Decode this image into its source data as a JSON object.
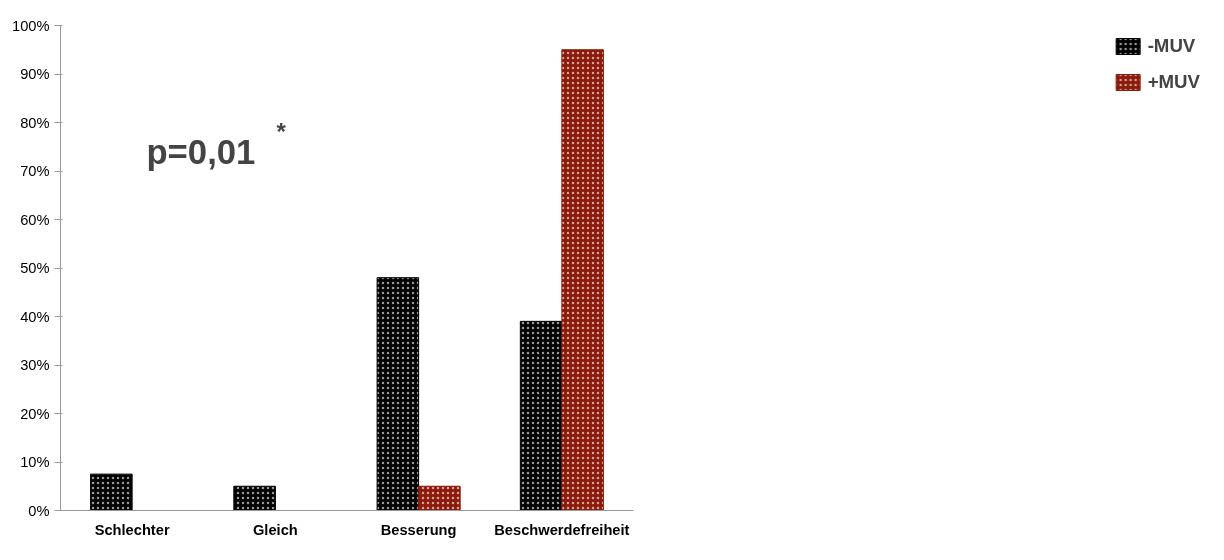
{
  "chart_data": {
    "type": "bar",
    "categories": [
      "Schlechter",
      "Gleich",
      "Besserung",
      "Beschwerdefreiheit"
    ],
    "series": [
      {
        "name": "-MUV",
        "color": "#000000",
        "values": [
          7.5,
          5,
          48,
          39
        ]
      },
      {
        "name": "+MUV",
        "color": "#8b1a0a",
        "values": [
          0,
          0,
          5,
          95
        ]
      }
    ],
    "ylim": [
      0,
      100
    ],
    "yticks": [
      {
        "value": 0,
        "label": "0%"
      },
      {
        "value": 10,
        "label": "10%"
      },
      {
        "value": 20,
        "label": "20%"
      },
      {
        "value": 30,
        "label": "30%"
      },
      {
        "value": 40,
        "label": "40%"
      },
      {
        "value": 50,
        "label": "50%"
      },
      {
        "value": 60,
        "label": "60%"
      },
      {
        "value": 70,
        "label": "70%"
      },
      {
        "value": 80,
        "label": "80%"
      },
      {
        "value": 90,
        "label": "90%"
      },
      {
        "value": 100,
        "label": "100%"
      }
    ],
    "annotations": [
      "p=0,01$^{*}$"
    ],
    "legend": "right",
    "grid": false
  }
}
